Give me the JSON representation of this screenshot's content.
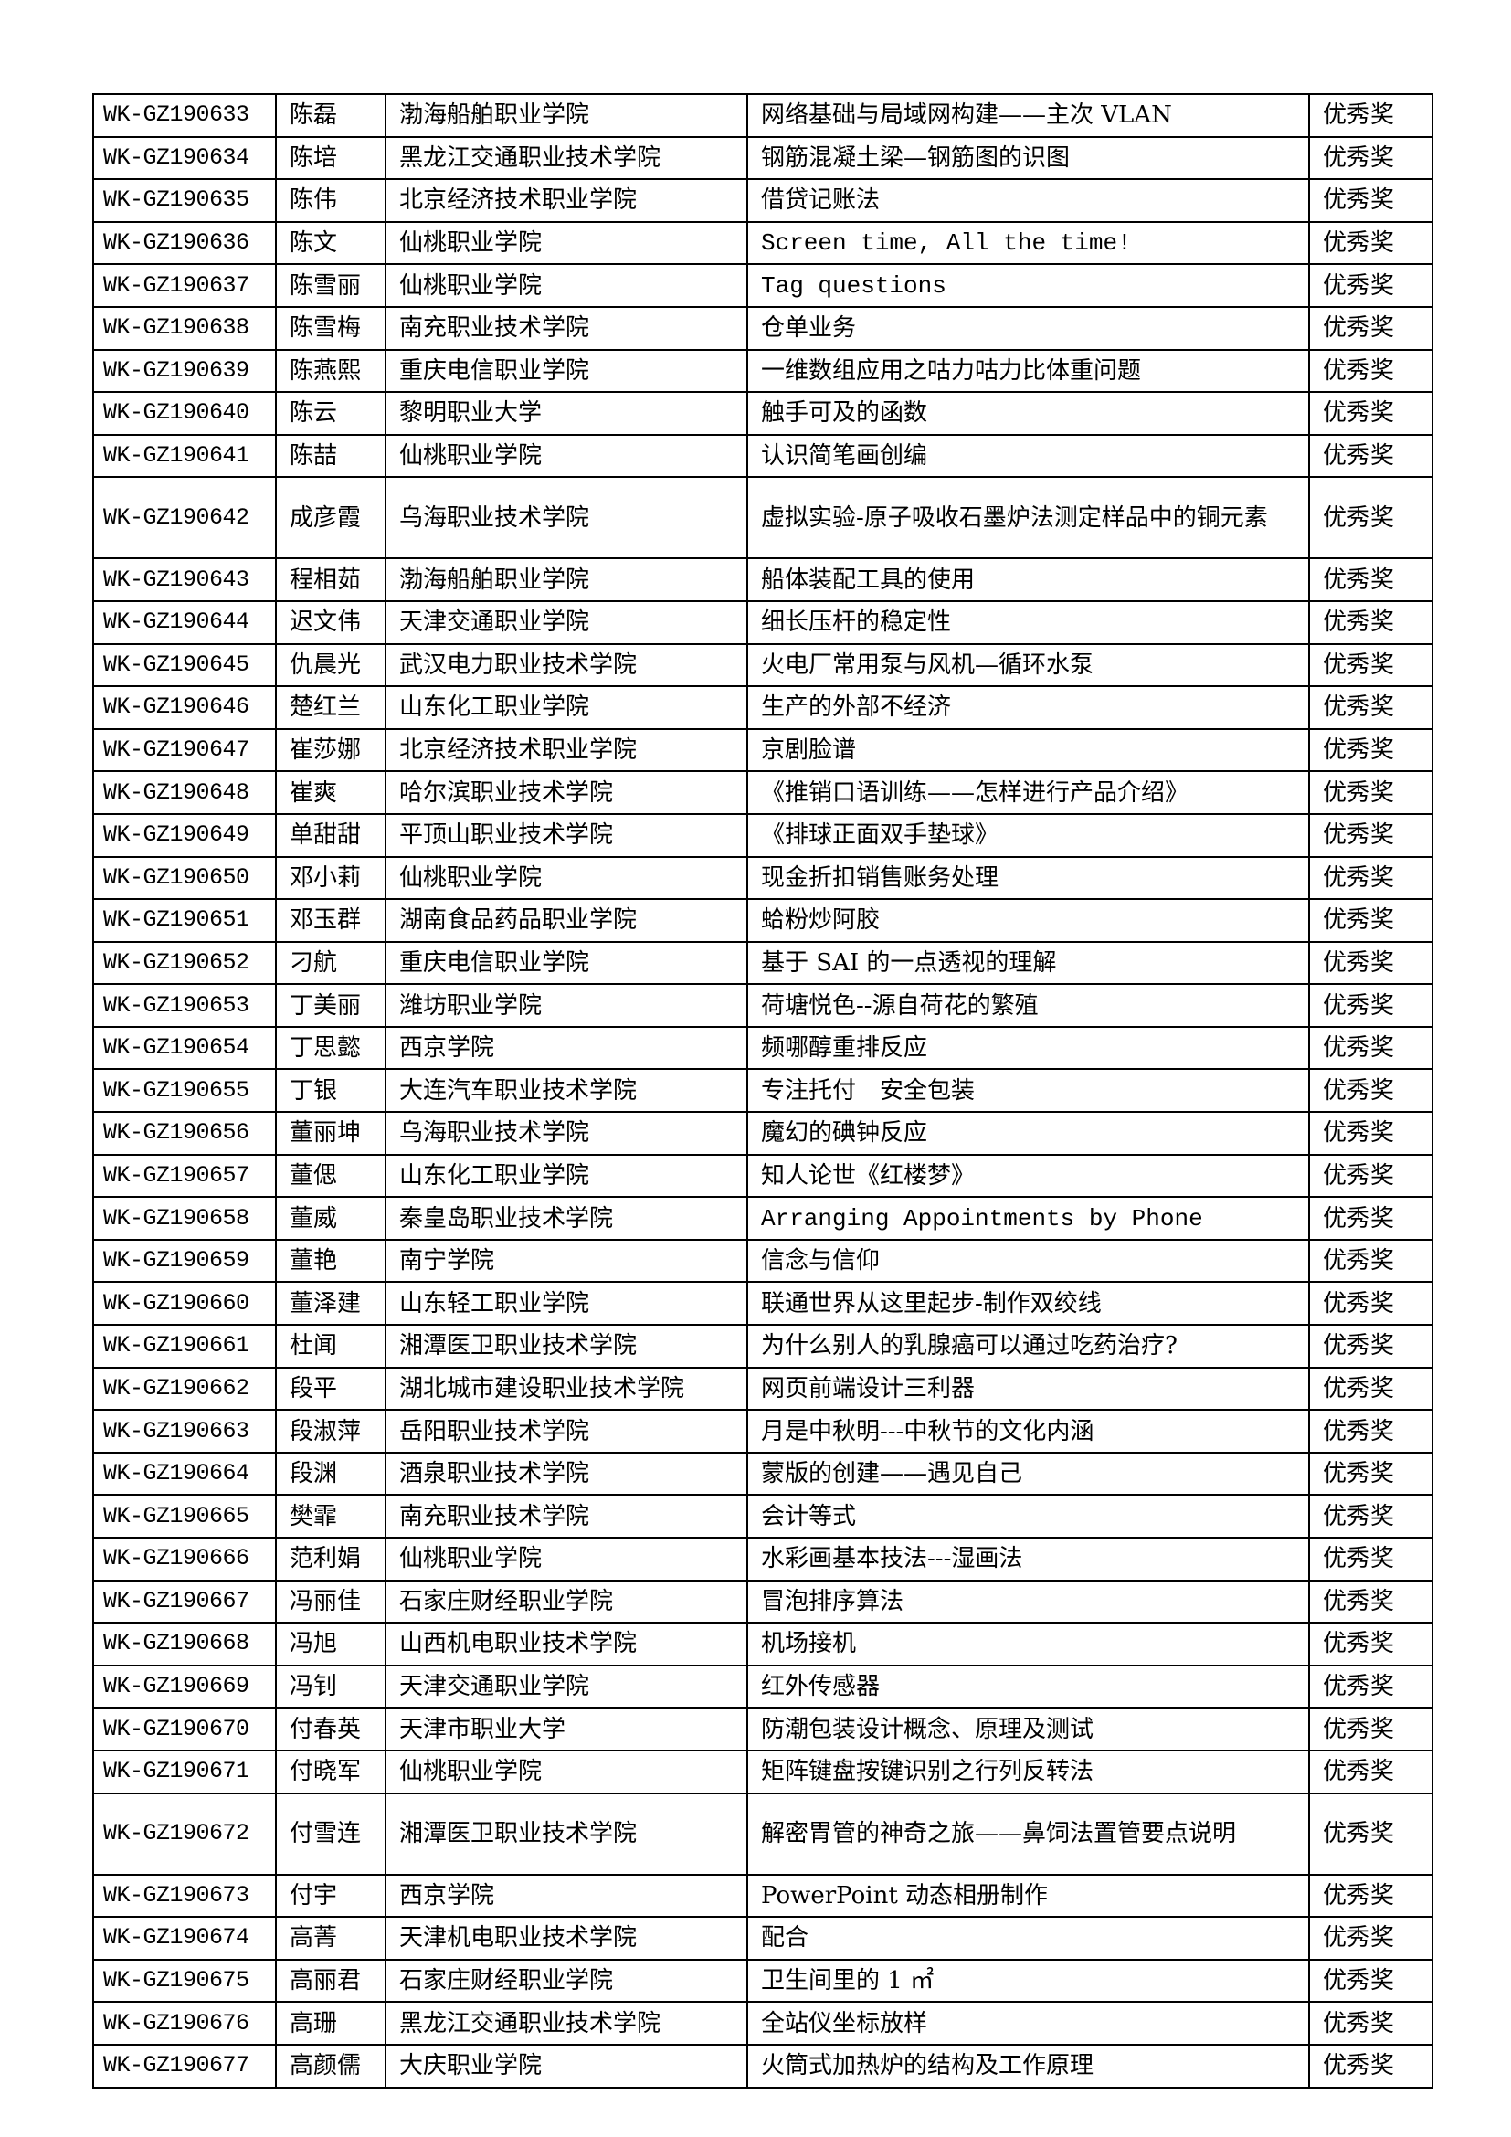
{
  "rows": [
    {
      "id": "WK-GZ190633",
      "name": "陈磊",
      "school": "渤海船舶职业学院",
      "title": "网络基础与局域网构建——主次 VLAN",
      "award": "优秀奖"
    },
    {
      "id": "WK-GZ190634",
      "name": "陈培",
      "school": "黑龙江交通职业技术学院",
      "title": "钢筋混凝土梁—钢筋图的识图",
      "award": "优秀奖"
    },
    {
      "id": "WK-GZ190635",
      "name": "陈伟",
      "school": "北京经济技术职业学院",
      "title": "借贷记账法",
      "award": "优秀奖"
    },
    {
      "id": "WK-GZ190636",
      "name": "陈文",
      "school": "仙桃职业学院",
      "title": "Screen time, All the time!",
      "award": "优秀奖"
    },
    {
      "id": "WK-GZ190637",
      "name": "陈雪丽",
      "school": "仙桃职业学院",
      "title": "Tag questions",
      "award": "优秀奖"
    },
    {
      "id": "WK-GZ190638",
      "name": "陈雪梅",
      "school": "南充职业技术学院",
      "title": "仓单业务",
      "award": "优秀奖"
    },
    {
      "id": "WK-GZ190639",
      "name": "陈燕熙",
      "school": "重庆电信职业学院",
      "title": "一维数组应用之咕力咕力比体重问题",
      "award": "优秀奖"
    },
    {
      "id": "WK-GZ190640",
      "name": "陈云",
      "school": "黎明职业大学",
      "title": "触手可及的函数",
      "award": "优秀奖"
    },
    {
      "id": "WK-GZ190641",
      "name": "陈喆",
      "school": "仙桃职业学院",
      "title": "认识简笔画创编",
      "award": "优秀奖"
    },
    {
      "id": "WK-GZ190642",
      "name": "成彦霞",
      "school": "乌海职业技术学院",
      "title": "虚拟实验-原子吸收石墨炉法测定样品中的铜元素",
      "award": "优秀奖"
    },
    {
      "id": "WK-GZ190643",
      "name": "程相茹",
      "school": "渤海船舶职业学院",
      "title": "船体装配工具的使用",
      "award": "优秀奖"
    },
    {
      "id": "WK-GZ190644",
      "name": "迟文伟",
      "school": "天津交通职业学院",
      "title": "细长压杆的稳定性",
      "award": "优秀奖"
    },
    {
      "id": "WK-GZ190645",
      "name": "仇晨光",
      "school": "武汉电力职业技术学院",
      "title": "火电厂常用泵与风机—循环水泵",
      "award": "优秀奖"
    },
    {
      "id": "WK-GZ190646",
      "name": "楚红兰",
      "school": "山东化工职业学院",
      "title": "生产的外部不经济",
      "award": "优秀奖"
    },
    {
      "id": "WK-GZ190647",
      "name": "崔莎娜",
      "school": "北京经济技术职业学院",
      "title": "京剧脸谱",
      "award": "优秀奖"
    },
    {
      "id": "WK-GZ190648",
      "name": "崔爽",
      "school": "哈尔滨职业技术学院",
      "title": "《推销口语训练——怎样进行产品介绍》",
      "award": "优秀奖"
    },
    {
      "id": "WK-GZ190649",
      "name": "单甜甜",
      "school": "平顶山职业技术学院",
      "title": "《排球正面双手垫球》",
      "award": "优秀奖"
    },
    {
      "id": "WK-GZ190650",
      "name": "邓小莉",
      "school": "仙桃职业学院",
      "title": "现金折扣销售账务处理",
      "award": "优秀奖"
    },
    {
      "id": "WK-GZ190651",
      "name": "邓玉群",
      "school": "湖南食品药品职业学院",
      "title": "蛤粉炒阿胶",
      "award": "优秀奖"
    },
    {
      "id": "WK-GZ190652",
      "name": "刁航",
      "school": "重庆电信职业学院",
      "title": "基于 SAI 的一点透视的理解",
      "award": "优秀奖"
    },
    {
      "id": "WK-GZ190653",
      "name": "丁美丽",
      "school": "潍坊职业学院",
      "title": "荷塘悦色--源自荷花的繁殖",
      "award": "优秀奖"
    },
    {
      "id": "WK-GZ190654",
      "name": "丁思懿",
      "school": "西京学院",
      "title": "频哪醇重排反应",
      "award": "优秀奖"
    },
    {
      "id": "WK-GZ190655",
      "name": "丁银",
      "school": "大连汽车职业技术学院",
      "title": "专注托付　安全包装",
      "award": "优秀奖"
    },
    {
      "id": "WK-GZ190656",
      "name": "董丽坤",
      "school": "乌海职业技术学院",
      "title": "魔幻的碘钟反应",
      "award": "优秀奖"
    },
    {
      "id": "WK-GZ190657",
      "name": "董偲",
      "school": "山东化工职业学院",
      "title": "知人论世《红楼梦》",
      "award": "优秀奖"
    },
    {
      "id": "WK-GZ190658",
      "name": "董威",
      "school": "秦皇岛职业技术学院",
      "title": "Arranging Appointments by Phone",
      "award": "优秀奖"
    },
    {
      "id": "WK-GZ190659",
      "name": "董艳",
      "school": "南宁学院",
      "title": "信念与信仰",
      "award": "优秀奖"
    },
    {
      "id": "WK-GZ190660",
      "name": "董泽建",
      "school": "山东轻工职业学院",
      "title": "联通世界从这里起步-制作双绞线",
      "award": "优秀奖"
    },
    {
      "id": "WK-GZ190661",
      "name": "杜闻",
      "school": "湘潭医卫职业技术学院",
      "title": "为什么别人的乳腺癌可以通过吃药治疗?",
      "award": "优秀奖"
    },
    {
      "id": "WK-GZ190662",
      "name": "段平",
      "school": "湖北城市建设职业技术学院",
      "title": "网页前端设计三利器",
      "award": "优秀奖"
    },
    {
      "id": "WK-GZ190663",
      "name": "段淑萍",
      "school": "岳阳职业技术学院",
      "title": "月是中秋明---中秋节的文化内涵",
      "award": "优秀奖"
    },
    {
      "id": "WK-GZ190664",
      "name": "段渊",
      "school": "酒泉职业技术学院",
      "title": "蒙版的创建——遇见自己",
      "award": "优秀奖"
    },
    {
      "id": "WK-GZ190665",
      "name": "樊霏",
      "school": "南充职业技术学院",
      "title": "会计等式",
      "award": "优秀奖"
    },
    {
      "id": "WK-GZ190666",
      "name": "范利娟",
      "school": "仙桃职业学院",
      "title": "水彩画基本技法---湿画法",
      "award": "优秀奖"
    },
    {
      "id": "WK-GZ190667",
      "name": "冯丽佳",
      "school": "石家庄财经职业学院",
      "title": "冒泡排序算法",
      "award": "优秀奖"
    },
    {
      "id": "WK-GZ190668",
      "name": "冯旭",
      "school": "山西机电职业技术学院",
      "title": "机场接机",
      "award": "优秀奖"
    },
    {
      "id": "WK-GZ190669",
      "name": "冯钊",
      "school": "天津交通职业学院",
      "title": "红外传感器",
      "award": "优秀奖"
    },
    {
      "id": "WK-GZ190670",
      "name": "付春英",
      "school": "天津市职业大学",
      "title": "防潮包装设计概念、原理及测试",
      "award": "优秀奖"
    },
    {
      "id": "WK-GZ190671",
      "name": "付晓军",
      "school": "仙桃职业学院",
      "title": "矩阵键盘按键识别之行列反转法",
      "award": "优秀奖"
    },
    {
      "id": "WK-GZ190672",
      "name": "付雪连",
      "school": "湘潭医卫职业技术学院",
      "title": "解密胃管的神奇之旅——鼻饲法置管要点说明",
      "award": "优秀奖"
    },
    {
      "id": "WK-GZ190673",
      "name": "付宇",
      "school": "西京学院",
      "title": "PowerPoint 动态相册制作",
      "award": "优秀奖"
    },
    {
      "id": "WK-GZ190674",
      "name": "高菁",
      "school": "天津机电职业技术学院",
      "title": "配合",
      "award": "优秀奖"
    },
    {
      "id": "WK-GZ190675",
      "name": "高丽君",
      "school": "石家庄财经职业学院",
      "title": "卫生间里的 1 ㎡",
      "award": "优秀奖"
    },
    {
      "id": "WK-GZ190676",
      "name": "高珊",
      "school": "黑龙江交通职业技术学院",
      "title": "全站仪坐标放样",
      "award": "优秀奖"
    },
    {
      "id": "WK-GZ190677",
      "name": "高颜儒",
      "school": "大庆职业学院",
      "title": "火筒式加热炉的结构及工作原理",
      "award": "优秀奖"
    }
  ]
}
